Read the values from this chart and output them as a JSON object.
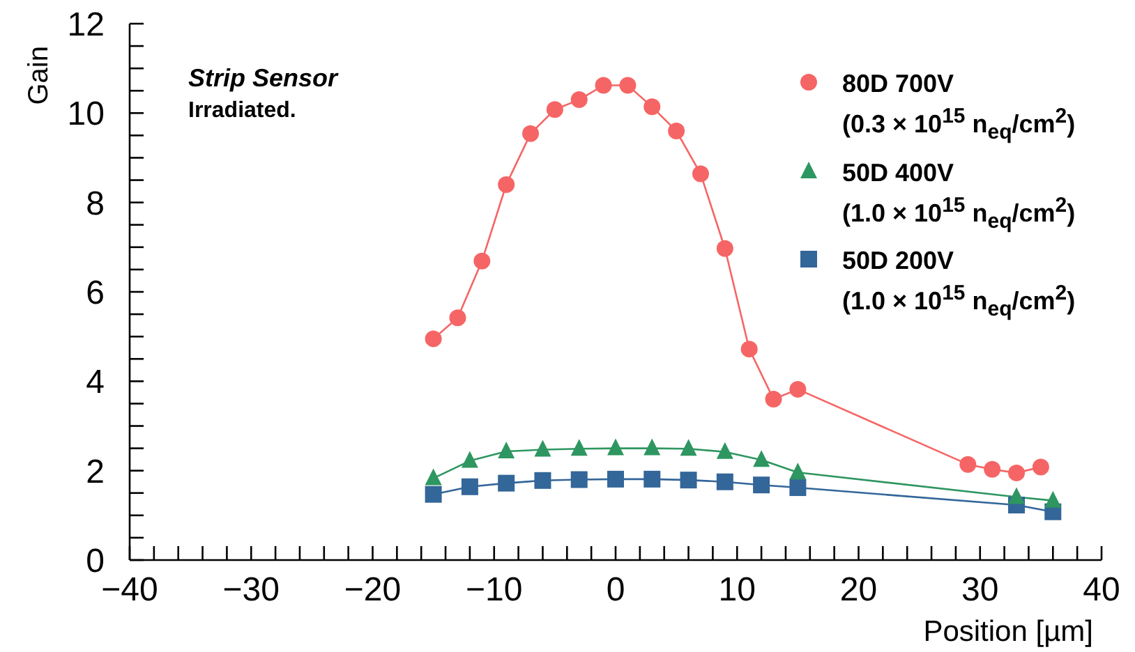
{
  "chart_data": {
    "type": "line",
    "xlabel": "Position [µm]",
    "ylabel": "Gain",
    "annotations": [
      "Strip Sensor",
      "Irradiated."
    ],
    "xlim": [
      -40,
      40
    ],
    "xticks": [
      -40,
      {
        "value": -38,
        "label": null
      },
      {
        "value": -36,
        "label": null
      },
      {
        "value": -34,
        "label": null
      },
      {
        "value": -32,
        "label": null
      },
      -30,
      {
        "value": -28,
        "label": null
      },
      {
        "value": -26,
        "label": null
      },
      {
        "value": -24,
        "label": null
      },
      {
        "value": -22,
        "label": null
      },
      -20,
      {
        "value": -18,
        "label": null
      },
      {
        "value": -16,
        "label": null
      },
      {
        "value": -14,
        "label": null
      },
      {
        "value": -12,
        "label": null
      },
      -10,
      {
        "value": -8,
        "label": null
      },
      {
        "value": -6,
        "label": null
      },
      {
        "value": -4,
        "label": null
      },
      {
        "value": -2,
        "label": null
      },
      0,
      {
        "value": 2,
        "label": null
      },
      {
        "value": 4,
        "label": null
      },
      {
        "value": 6,
        "label": null
      },
      {
        "value": 8,
        "label": null
      },
      10,
      {
        "value": 12,
        "label": null
      },
      {
        "value": 14,
        "label": null
      },
      {
        "value": 16,
        "label": null
      },
      {
        "value": 18,
        "label": null
      },
      20,
      {
        "value": 22,
        "label": null
      },
      {
        "value": 24,
        "label": null
      },
      {
        "value": 26,
        "label": null
      },
      {
        "value": 28,
        "label": null
      },
      30,
      {
        "value": 32,
        "label": null
      },
      {
        "value": 34,
        "label": null
      },
      {
        "value": 36,
        "label": null
      },
      {
        "value": 38,
        "label": null
      },
      40
    ],
    "ylim": [
      0,
      12
    ],
    "yticks": [
      0,
      {
        "value": 0.5,
        "label": null
      },
      {
        "value": 1,
        "label": null
      },
      {
        "value": 1.5,
        "label": null
      },
      2,
      {
        "value": 2.5,
        "label": null
      },
      {
        "value": 3,
        "label": null
      },
      {
        "value": 3.5,
        "label": null
      },
      4,
      {
        "value": 4.5,
        "label": null
      },
      {
        "value": 5,
        "label": null
      },
      {
        "value": 5.5,
        "label": null
      },
      6,
      {
        "value": 6.5,
        "label": null
      },
      {
        "value": 7,
        "label": null
      },
      {
        "value": 7.5,
        "label": null
      },
      8,
      {
        "value": 8.5,
        "label": null
      },
      {
        "value": 9,
        "label": null
      },
      {
        "value": 9.5,
        "label": null
      },
      10,
      {
        "value": 10.5,
        "label": null
      },
      {
        "value": 11,
        "label": null
      },
      {
        "value": 11.5,
        "label": null
      },
      12
    ],
    "grid": false,
    "legend": "top right",
    "line_style": "solid",
    "series": [
      {
        "name": "80D 700V\n(0.3 × 10$^{15}$ n$_{eq}$/cm$^{2}$)",
        "color": "#f66565",
        "marker": "circle",
        "x": [
          -15,
          -13,
          -11,
          -9,
          -7,
          -5,
          -3,
          -1,
          1,
          3,
          5,
          7,
          9,
          11,
          13,
          15,
          29,
          31,
          33,
          35
        ],
        "values": [
          4.95,
          5.42,
          6.69,
          8.4,
          9.54,
          10.08,
          10.3,
          10.62,
          10.62,
          10.14,
          9.6,
          8.64,
          6.97,
          4.72,
          3.6,
          3.82,
          2.14,
          2.03,
          1.95,
          2.08
        ]
      },
      {
        "name": "50D 400V\n(1.0 × 10$^{15}$ n$_{eq}$/cm$^{2}$)",
        "color": "#2e9660",
        "marker": "triangle",
        "x": [
          -15,
          -12,
          -9,
          -6,
          -3,
          0,
          3,
          6,
          9,
          12,
          15,
          33,
          36
        ],
        "values": [
          1.83,
          2.22,
          2.43,
          2.47,
          2.49,
          2.5,
          2.5,
          2.49,
          2.42,
          2.24,
          1.96,
          1.41,
          1.33
        ]
      },
      {
        "name": "50D 200V\n(1.0 × 10$^{15}$ n$_{eq}$/cm$^{2}$)",
        "color": "#336699",
        "marker": "square",
        "x": [
          -15,
          -12,
          -9,
          -6,
          -3,
          0,
          3,
          6,
          9,
          12,
          15,
          33,
          36
        ],
        "values": [
          1.47,
          1.64,
          1.72,
          1.78,
          1.8,
          1.81,
          1.81,
          1.79,
          1.75,
          1.68,
          1.62,
          1.23,
          1.08
        ]
      }
    ]
  }
}
